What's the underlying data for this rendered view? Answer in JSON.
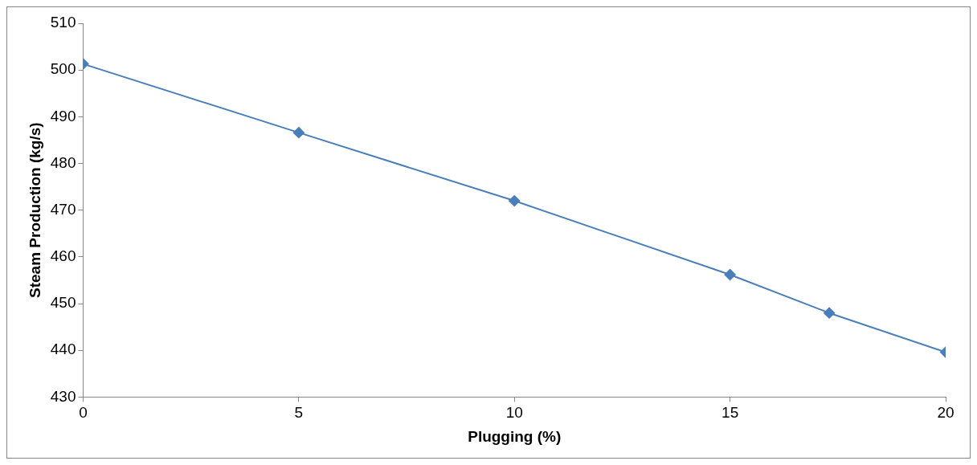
{
  "chart_data": {
    "type": "line",
    "xlabel": "Plugging (%)",
    "ylabel": "Steam Production (kg/s)",
    "x": [
      0,
      5,
      10,
      15,
      17.3,
      20
    ],
    "series": [
      {
        "color": "#4a7ebb",
        "values": [
          501.3,
          486.6,
          472,
          456.2,
          448,
          439.6
        ]
      }
    ],
    "xlim": [
      0,
      20
    ],
    "xticks": [
      0,
      5,
      10,
      15,
      20
    ],
    "ylim": [
      430,
      510
    ],
    "yticks": [
      430,
      440,
      450,
      460,
      470,
      480,
      490,
      500,
      510
    ],
    "grid": false,
    "legend": false,
    "marker": "diamond",
    "line_style": "solid"
  }
}
